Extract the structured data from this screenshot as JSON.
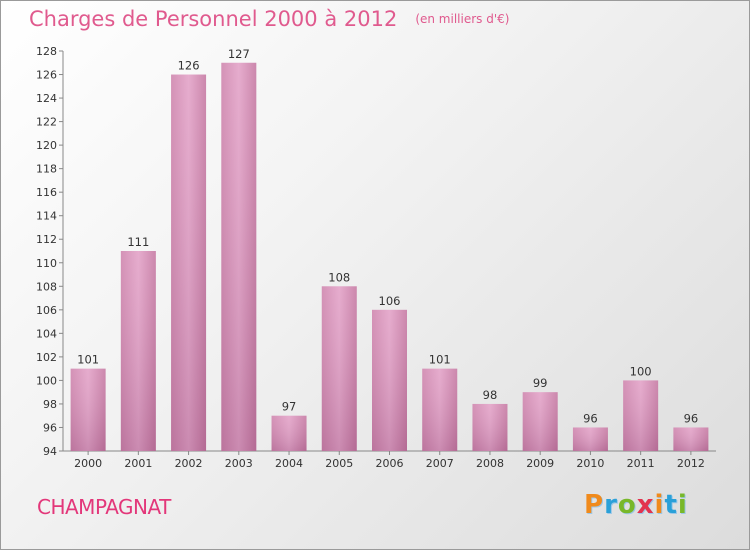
{
  "chart_data": {
    "type": "bar",
    "title": "Charges de Personnel 2000 à 2012",
    "subtitle": "(en milliers d'€)",
    "categories": [
      "2000",
      "2001",
      "2002",
      "2003",
      "2004",
      "2005",
      "2006",
      "2007",
      "2008",
      "2009",
      "2010",
      "2011",
      "2012"
    ],
    "values": [
      101,
      111,
      126,
      127,
      97,
      108,
      106,
      101,
      98,
      99,
      96,
      100,
      96
    ],
    "ylim": [
      94,
      128
    ],
    "yticks": [
      94,
      96,
      98,
      100,
      102,
      104,
      106,
      108,
      110,
      112,
      114,
      116,
      118,
      120,
      122,
      124,
      126,
      128
    ],
    "grid": false,
    "bar_color": "#d990b8"
  },
  "footer": {
    "commune": "CHAMPAGNAT",
    "logo": "Proxiti",
    "logo_colors": [
      "#f08a1c",
      "#2aa0d8",
      "#78b82a",
      "#e2334f",
      "#f08a1c",
      "#2aa0d8",
      "#78b82a"
    ]
  }
}
